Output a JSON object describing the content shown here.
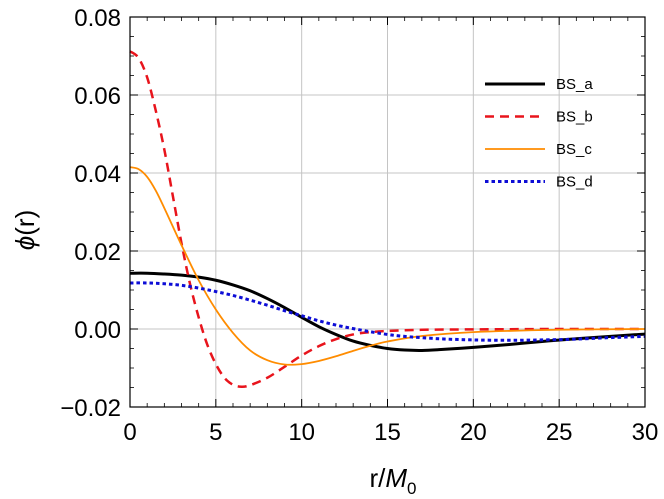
{
  "chart_data": {
    "type": "line",
    "xlabel": {
      "main": "r/",
      "var": "M",
      "sub": "0"
    },
    "ylabel": {
      "var": "ϕ",
      "arg": "(r)"
    },
    "xlim": [
      0,
      30
    ],
    "ylim": [
      -0.02,
      0.08
    ],
    "xticks": [
      0,
      5,
      10,
      15,
      20,
      25,
      30
    ],
    "xtick_labels": [
      "0",
      "5",
      "10",
      "15",
      "20",
      "25",
      "30"
    ],
    "yticks": [
      -0.02,
      0,
      0.02,
      0.04,
      0.06,
      0.08
    ],
    "ytick_labels": [
      "−0.02",
      "0.00",
      "0.02",
      "0.04",
      "0.06",
      "0.08"
    ],
    "grid": true,
    "legend_position": "top-right",
    "series": [
      {
        "name": "BS_a",
        "color": "#000000",
        "dash": "solid",
        "width": 3,
        "points": [
          [
            0,
            0.0143
          ],
          [
            1,
            0.0143
          ],
          [
            2,
            0.0141
          ],
          [
            3,
            0.0138
          ],
          [
            4,
            0.0133
          ],
          [
            5,
            0.0125
          ],
          [
            6,
            0.0113
          ],
          [
            7,
            0.0098
          ],
          [
            8,
            0.0078
          ],
          [
            9,
            0.0055
          ],
          [
            10,
            0.003
          ],
          [
            11,
            0.0006
          ],
          [
            12,
            -0.0014
          ],
          [
            13,
            -0.0031
          ],
          [
            14,
            -0.0042
          ],
          [
            15,
            -0.005
          ],
          [
            16,
            -0.0054
          ],
          [
            17,
            -0.0055
          ],
          [
            18,
            -0.0053
          ],
          [
            20,
            -0.0047
          ],
          [
            22,
            -0.004
          ],
          [
            24,
            -0.0032
          ],
          [
            26,
            -0.0025
          ],
          [
            28,
            -0.0019
          ],
          [
            30,
            -0.0013
          ]
        ]
      },
      {
        "name": "BS_b",
        "color": "#e8141c",
        "dash": "dashed",
        "width": 2.5,
        "points": [
          [
            0,
            0.0712
          ],
          [
            0.5,
            0.0695
          ],
          [
            1,
            0.0645
          ],
          [
            1.5,
            0.056
          ],
          [
            2,
            0.046
          ],
          [
            2.5,
            0.034
          ],
          [
            3,
            0.022
          ],
          [
            3.5,
            0.0115
          ],
          [
            4,
            0.003
          ],
          [
            4.5,
            -0.004
          ],
          [
            5,
            -0.009
          ],
          [
            5.5,
            -0.0125
          ],
          [
            6,
            -0.0143
          ],
          [
            6.5,
            -0.0148
          ],
          [
            7,
            -0.0144
          ],
          [
            8,
            -0.0125
          ],
          [
            9,
            -0.0097
          ],
          [
            10,
            -0.0068
          ],
          [
            11,
            -0.0044
          ],
          [
            12,
            -0.0026
          ],
          [
            13,
            -0.0014
          ],
          [
            14,
            -0.0008
          ],
          [
            15,
            -0.0005
          ],
          [
            17,
            -0.0002
          ],
          [
            20,
            -0.0001
          ],
          [
            25,
            0.0
          ],
          [
            30,
            0.0
          ]
        ]
      },
      {
        "name": "BS_c",
        "color": "#ff8c00",
        "dash": "solid",
        "width": 1.8,
        "points": [
          [
            0,
            0.0415
          ],
          [
            0.5,
            0.041
          ],
          [
            1,
            0.039
          ],
          [
            1.5,
            0.0355
          ],
          [
            2,
            0.031
          ],
          [
            3,
            0.0215
          ],
          [
            4,
            0.0125
          ],
          [
            5,
            0.005
          ],
          [
            6,
            -0.001
          ],
          [
            7,
            -0.0055
          ],
          [
            8,
            -0.008
          ],
          [
            9,
            -0.0091
          ],
          [
            10,
            -0.009
          ],
          [
            11,
            -0.0082
          ],
          [
            12,
            -0.007
          ],
          [
            13,
            -0.0056
          ],
          [
            14,
            -0.0043
          ],
          [
            15,
            -0.0032
          ],
          [
            17,
            -0.0018
          ],
          [
            20,
            -0.0008
          ],
          [
            25,
            -0.0002
          ],
          [
            30,
            0.0
          ]
        ]
      },
      {
        "name": "BS_d",
        "color": "#0d0dd6",
        "dash": "dotted",
        "width": 3,
        "points": [
          [
            0,
            0.0118
          ],
          [
            1,
            0.0118
          ],
          [
            2,
            0.0116
          ],
          [
            3,
            0.0112
          ],
          [
            4,
            0.0105
          ],
          [
            5,
            0.0096
          ],
          [
            6,
            0.0086
          ],
          [
            7,
            0.0074
          ],
          [
            8,
            0.0061
          ],
          [
            9,
            0.0047
          ],
          [
            10,
            0.0034
          ],
          [
            11,
            0.0021
          ],
          [
            12,
            0.001
          ],
          [
            13,
            0.0001
          ],
          [
            14,
            -0.0007
          ],
          [
            15,
            -0.0014
          ],
          [
            16,
            -0.0019
          ],
          [
            18,
            -0.0025
          ],
          [
            20,
            -0.0028
          ],
          [
            22,
            -0.0029
          ],
          [
            24,
            -0.0028
          ],
          [
            26,
            -0.0026
          ],
          [
            28,
            -0.0022
          ],
          [
            30,
            -0.0019
          ]
        ]
      }
    ]
  }
}
